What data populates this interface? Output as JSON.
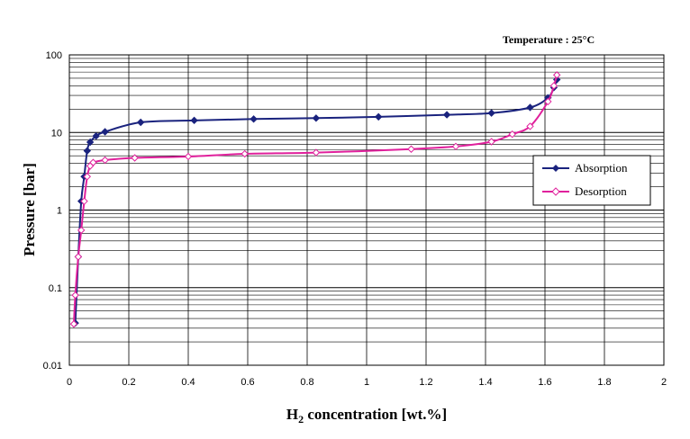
{
  "chart_data": {
    "type": "line",
    "annotation": "Temperature : 25°C",
    "xlabel": "H2 concentration [wt.%]",
    "ylabel": "Pressure [bar]",
    "xlim": [
      0,
      2
    ],
    "ylim": [
      0.01,
      100
    ],
    "yscale": "log",
    "grid": true,
    "legend_position": "right",
    "x_ticks": [
      "0",
      "0.2",
      "0.4",
      "0.6",
      "0.8",
      "1",
      "1.2",
      "1.4",
      "1.6",
      "1.8",
      "2"
    ],
    "y_ticks": [
      "0.01",
      "0.1",
      "1",
      "10",
      "100"
    ],
    "series": [
      {
        "name": "Absorption",
        "color": "#1a237e",
        "marker": "filled-diamond",
        "x": [
          0.02,
          0.03,
          0.04,
          0.05,
          0.06,
          0.07,
          0.09,
          0.12,
          0.24,
          0.42,
          0.62,
          0.83,
          1.04,
          1.27,
          1.42,
          1.55,
          1.61,
          1.63,
          1.64
        ],
        "y": [
          0.035,
          0.25,
          1.3,
          2.7,
          5.8,
          7.5,
          9.0,
          10.2,
          13.5,
          14.3,
          14.9,
          15.3,
          15.9,
          16.9,
          17.8,
          21.0,
          28.0,
          38.0,
          48.0
        ]
      },
      {
        "name": "Desorption",
        "color": "#e0209c",
        "marker": "open-diamond",
        "x": [
          1.64,
          1.63,
          1.61,
          1.55,
          1.49,
          1.42,
          1.3,
          1.15,
          0.83,
          0.59,
          0.4,
          0.22,
          0.12,
          0.08,
          0.07,
          0.06,
          0.05,
          0.04,
          0.03,
          0.02,
          0.015
        ],
        "y": [
          55.0,
          40.0,
          25.0,
          12.0,
          9.5,
          7.6,
          6.6,
          6.1,
          5.5,
          5.3,
          4.9,
          4.7,
          4.4,
          4.1,
          3.7,
          2.7,
          1.3,
          0.55,
          0.25,
          0.08,
          0.034
        ]
      }
    ]
  }
}
